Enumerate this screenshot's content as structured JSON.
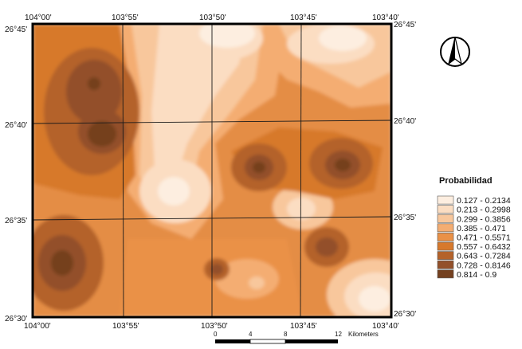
{
  "top_labels": [
    "104°00'",
    "103°55'",
    "103°50'",
    "103°45'",
    "103°40'"
  ],
  "bottom_labels": [
    "104°00'",
    "103°55'",
    "103°50'",
    "103°45'",
    "103°40'"
  ],
  "left_labels": [
    "26°45'",
    "26°40'",
    "26°35'",
    "26°30'"
  ],
  "right_labels": [
    "26°45'",
    "26°40'",
    "26°35'",
    "26°30'"
  ],
  "north_arrow": {
    "icon": "north-arrow-icon"
  },
  "legend": {
    "title": "Probabilidad",
    "classes": [
      {
        "label": "0.127 - 0.2134",
        "color": "#fdeee0"
      },
      {
        "label": "0.213 - 0.2998",
        "color": "#fbddc2"
      },
      {
        "label": "0.299 - 0.3856",
        "color": "#f8c79c"
      },
      {
        "label": "0.385 - 0.471",
        "color": "#f4ad72"
      },
      {
        "label": "0.471 - 0.5571",
        "color": "#ea9147"
      },
      {
        "label": "0.557 - 0.6432",
        "color": "#d7792c"
      },
      {
        "label": "0.643 - 0.7284",
        "color": "#b4622a"
      },
      {
        "label": "0.728 - 0.8146",
        "color": "#93502a"
      },
      {
        "label": "0.814 - 0.9",
        "color": "#74401f"
      }
    ]
  },
  "scale_bar": {
    "ticks": [
      "0",
      "4",
      "8",
      "12"
    ],
    "unit": "Kilometers"
  }
}
